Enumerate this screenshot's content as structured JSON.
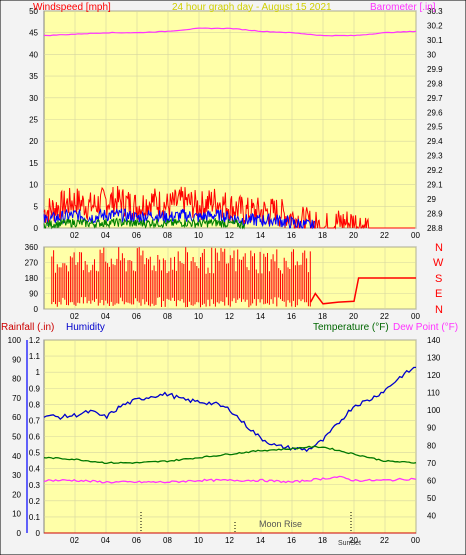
{
  "header": {
    "wind_label": "Windspeed [mph]",
    "title": "24 hour graph day - August 15 2021",
    "baro_label": "Barometer [.in]"
  },
  "direction_letters": [
    "N",
    "W",
    "S",
    "E",
    "N"
  ],
  "bottom_labels": {
    "rain": "Rainfall (.in)",
    "humidity": "Humidity",
    "temp": "Temperature (°F)",
    "dew": "Dew Point (°F)"
  },
  "annotations": {
    "moon_rise": "Moon Rise",
    "sunset": "SunSet"
  },
  "colors": {
    "plot_bg": "#ffffa8",
    "frame": "#f3f3f3",
    "grid": "#d6d6a0",
    "wind": "#ff0000",
    "gust": "#0000ff",
    "avg": "#008000",
    "baro": "#ff33ff",
    "dir": "#ff0000",
    "temp": "#007700",
    "dew": "#ff33ff",
    "hum": "#0000cc",
    "rain": "#cc0000",
    "label_red": "#ff0000",
    "label_blue": "#0000ff",
    "label_green": "#006600",
    "title": "#d0d000"
  },
  "chart_data": [
    {
      "type": "line",
      "name": "wind-barometer",
      "x_ticks": [
        "02",
        "04",
        "06",
        "08",
        "10",
        "12",
        "14",
        "16",
        "18",
        "20",
        "22",
        "00"
      ],
      "y_left": {
        "label": "Windspeed [mph]",
        "lim": [
          0,
          50
        ],
        "ticks": [
          0,
          5,
          10,
          15,
          20,
          25,
          30,
          35,
          40,
          45,
          50
        ]
      },
      "y_right": {
        "label": "Barometer [.in]",
        "lim": [
          28.8,
          30.3
        ],
        "ticks": [
          28.8,
          28.9,
          29,
          29.1,
          29.2,
          29.3,
          29.4,
          29.5,
          29.6,
          29.7,
          29.8,
          29.9,
          30,
          30.1,
          30.2,
          30.3
        ]
      },
      "series": [
        {
          "name": "Windspeed",
          "hours": [
            0,
            1,
            2,
            3,
            4,
            5,
            6,
            7,
            8,
            9,
            10,
            11,
            12,
            13,
            14,
            15,
            16,
            17,
            17.5,
            18,
            19,
            20,
            21,
            22,
            23,
            24
          ],
          "values": [
            3,
            4,
            5,
            4,
            5,
            5,
            4,
            5,
            4,
            5,
            4,
            5,
            4,
            3,
            3,
            3,
            2,
            1,
            0.5,
            0,
            1,
            1,
            0,
            0,
            0,
            0
          ]
        },
        {
          "name": "Barometer",
          "hours": [
            0,
            2,
            4,
            6,
            8,
            10,
            12,
            14,
            16,
            18,
            20,
            22,
            24
          ],
          "values": [
            30.13,
            30.14,
            30.15,
            30.15,
            30.16,
            30.18,
            30.18,
            30.16,
            30.15,
            30.13,
            30.13,
            30.15,
            30.16
          ]
        }
      ]
    },
    {
      "type": "line",
      "name": "wind-direction",
      "x_ticks": [
        "02",
        "04",
        "06",
        "08",
        "10",
        "12",
        "14",
        "16",
        "18",
        "20",
        "22",
        "00"
      ],
      "y_left": {
        "lim": [
          0,
          360
        ],
        "ticks": [
          0,
          90,
          180,
          270,
          360
        ]
      },
      "y_right": {
        "ticks": [
          "N",
          "W",
          "S",
          "E",
          "N"
        ]
      },
      "series": [
        {
          "name": "Direction",
          "hours": [
            0,
            17.2,
            17.5,
            18,
            19,
            20,
            20.3,
            21,
            22,
            23,
            24
          ],
          "values": [
            200,
            40,
            90,
            30,
            40,
            45,
            180,
            180,
            180,
            180,
            180
          ]
        }
      ]
    },
    {
      "type": "line",
      "name": "temp-humidity-rain",
      "x_ticks": [
        "02",
        "04",
        "06",
        "08",
        "10",
        "12",
        "14",
        "16",
        "18",
        "20",
        "22",
        "00"
      ],
      "y_rain": {
        "label": "Rainfall (.in)",
        "lim": [
          0,
          1.2
        ],
        "ticks": [
          0,
          0.1,
          0.2,
          0.3,
          0.4,
          0.5,
          0.6,
          0.7,
          0.8,
          0.9,
          1,
          1.1,
          1.2
        ]
      },
      "y_humidity": {
        "label": "Humidity",
        "lim": [
          0,
          100
        ],
        "ticks": [
          0,
          10,
          20,
          30,
          40,
          50,
          60,
          70,
          80,
          90,
          100
        ]
      },
      "y_temp": {
        "label": "Temperature (°F)",
        "lim": [
          30,
          140
        ],
        "ticks": [
          40,
          50,
          60,
          70,
          80,
          90,
          100,
          110,
          120,
          130,
          140
        ]
      },
      "series": [
        {
          "name": "Humidity",
          "hours": [
            0,
            1,
            2,
            3,
            4,
            5,
            6,
            7,
            8,
            9,
            10,
            11,
            12,
            13,
            14,
            15,
            16,
            17,
            18,
            19,
            20,
            21,
            22,
            23,
            24
          ],
          "values": [
            61,
            60,
            61,
            63,
            60,
            66,
            69,
            71,
            72,
            69,
            68,
            67,
            64,
            56,
            49,
            45,
            44,
            43,
            48,
            57,
            66,
            69,
            74,
            81,
            86
          ]
        },
        {
          "name": "Temperature",
          "hours": [
            0,
            2,
            4,
            6,
            8,
            10,
            12,
            14,
            16,
            17,
            18,
            20,
            22,
            24
          ],
          "values": [
            73,
            72,
            70,
            70,
            71,
            73,
            75,
            77,
            78,
            79,
            79,
            75,
            71,
            70
          ]
        },
        {
          "name": "Dew Point",
          "hours": [
            0,
            2,
            4,
            6,
            8,
            10,
            12,
            14,
            16,
            18,
            19,
            20,
            22,
            24
          ],
          "values": [
            60,
            60,
            59,
            59,
            59,
            60,
            60,
            60,
            59,
            61,
            62,
            60,
            60,
            61
          ]
        },
        {
          "name": "Rainfall",
          "hours": [
            0,
            24
          ],
          "values": [
            0,
            0
          ]
        }
      ]
    }
  ]
}
